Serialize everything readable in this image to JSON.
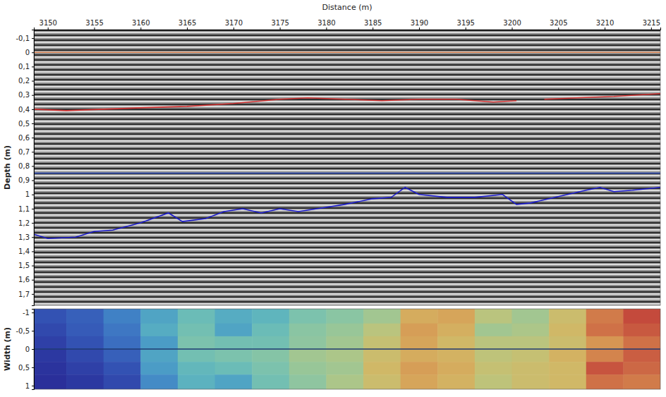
{
  "chart_data": [
    {
      "type": "line",
      "xlabel": "Distance (m)",
      "ylabel": "Depth (m)",
      "xlim": [
        3148.5,
        3216
      ],
      "xticks": [
        3150,
        3155,
        3160,
        3165,
        3170,
        3175,
        3180,
        3185,
        3190,
        3195,
        3200,
        3205,
        3210,
        3215
      ],
      "ylim": [
        1.78,
        -0.16
      ],
      "yticks": [
        {
          "value": -0.1,
          "label": "-0,1"
        },
        0,
        {
          "value": 0.1,
          "label": "0,1"
        },
        {
          "value": 0.2,
          "label": "0,2"
        },
        {
          "value": 0.3,
          "label": "0,3"
        },
        {
          "value": 0.4,
          "label": "0,4"
        },
        {
          "value": 0.5,
          "label": "0,5"
        },
        {
          "value": 0.6,
          "label": "0,6"
        },
        {
          "value": 0.7,
          "label": "0,7"
        },
        {
          "value": 0.8,
          "label": "0,8"
        },
        {
          "value": 0.9,
          "label": "0,9"
        },
        1,
        {
          "value": 1.1,
          "label": "1,1"
        },
        {
          "value": 1.2,
          "label": "1,2"
        },
        {
          "value": 1.3,
          "label": "1,3"
        },
        {
          "value": 1.4,
          "label": "1,4"
        },
        {
          "value": 1.5,
          "label": "1,5"
        },
        {
          "value": 1.6,
          "label": "1,6"
        },
        {
          "value": 1.7,
          "label": "1,7"
        }
      ],
      "grid": false,
      "series": [
        {
          "color": "#e08a5a",
          "x": [
            3148.5,
            3216
          ],
          "values": [
            0,
            0
          ]
        },
        {
          "color": "#d03030",
          "x": [
            3148.5,
            3152,
            3156,
            3160,
            3165,
            3170,
            3175,
            3178,
            3182,
            3186,
            3190,
            3194,
            3198,
            3200.5,
            3202,
            3203.5,
            3207,
            3211,
            3216
          ],
          "values": [
            0.4,
            0.41,
            0.4,
            0.39,
            0.38,
            0.36,
            0.33,
            0.32,
            0.33,
            0.34,
            0.33,
            0.33,
            0.35,
            0.34,
            null,
            0.33,
            0.32,
            0.31,
            0.29
          ]
        },
        {
          "color": "#3050c0",
          "x": [
            3148.5,
            3216
          ],
          "values": [
            0.85,
            0.85
          ]
        },
        {
          "color": "#1a1acc",
          "x": [
            3148.5,
            3150,
            3153,
            3155,
            3157,
            3160,
            3163,
            3164.5,
            3167,
            3169,
            3171,
            3173,
            3175,
            3177,
            3179,
            3182,
            3185,
            3187,
            3188.5,
            3190,
            3193,
            3196,
            3199,
            3200.5,
            3202,
            3204,
            3206,
            3208,
            3209.5,
            3211,
            3213,
            3216
          ],
          "values": [
            1.28,
            1.31,
            1.3,
            1.26,
            1.25,
            1.2,
            1.13,
            1.19,
            1.17,
            1.12,
            1.1,
            1.13,
            1.1,
            1.12,
            1.1,
            1.07,
            1.03,
            1.02,
            0.95,
            1.0,
            1.02,
            1.02,
            1.0,
            1.07,
            1.06,
            1.03,
            1.0,
            0.97,
            0.95,
            0.98,
            0.97,
            0.95
          ]
        }
      ]
    },
    {
      "type": "heatmap",
      "ylabel": "Width (m)",
      "xlim": [
        3148.5,
        3216
      ],
      "ylim": [
        1.1,
        -1.1
      ],
      "yticks": [
        -1,
        {
          "value": -0.5,
          "label": "-0,5"
        },
        0,
        {
          "value": 0.5,
          "label": "0,5"
        },
        1
      ],
      "tick_labels": "y",
      "x": [
        3148.5,
        3152,
        3156,
        3160,
        3164,
        3168,
        3172,
        3176,
        3180,
        3184,
        3188,
        3192,
        3196,
        3200,
        3204,
        3208,
        3212,
        3216
      ],
      "y": [
        -1.1,
        -0.7,
        -0.35,
        0,
        0.35,
        0.7,
        1.1
      ],
      "cells": [
        [
          0.12,
          0.15,
          0.22,
          0.3,
          0.38,
          0.32,
          0.35,
          0.42,
          0.45,
          0.5,
          0.66,
          0.68,
          0.55,
          0.5,
          0.6,
          0.78,
          0.88
        ],
        [
          0.1,
          0.14,
          0.2,
          0.32,
          0.4,
          0.3,
          0.38,
          0.45,
          0.48,
          0.55,
          0.7,
          0.65,
          0.5,
          0.52,
          0.62,
          0.8,
          0.85
        ],
        [
          0.08,
          0.12,
          0.18,
          0.28,
          0.42,
          0.4,
          0.4,
          0.46,
          0.5,
          0.58,
          0.68,
          0.62,
          0.55,
          0.55,
          0.6,
          0.72,
          0.8
        ],
        [
          0.06,
          0.1,
          0.15,
          0.3,
          0.4,
          0.42,
          0.44,
          0.5,
          0.52,
          0.6,
          0.66,
          0.64,
          0.56,
          0.58,
          0.64,
          0.76,
          0.84
        ],
        [
          0.05,
          0.08,
          0.12,
          0.28,
          0.36,
          0.38,
          0.42,
          0.48,
          0.5,
          0.62,
          0.7,
          0.66,
          0.58,
          0.6,
          0.62,
          0.86,
          0.82
        ],
        [
          0.04,
          0.06,
          0.1,
          0.24,
          0.34,
          0.3,
          0.4,
          0.46,
          0.52,
          0.6,
          0.68,
          0.64,
          0.56,
          0.6,
          0.62,
          0.8,
          0.78
        ]
      ],
      "series": [
        {
          "color": "#1f3a70",
          "x": [
            3148.5,
            3216
          ],
          "values": [
            0,
            0
          ]
        }
      ]
    }
  ]
}
